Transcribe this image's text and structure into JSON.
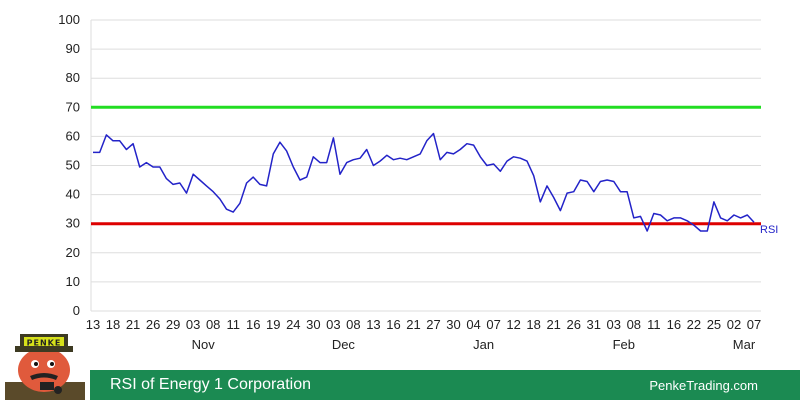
{
  "footer": {
    "title": "RSI of Energy 1 Corporation",
    "site": "PenkeTrading.com"
  },
  "mascot": {
    "hat_text": "PENKE"
  },
  "colors": {
    "rsi_line": "#2323c8",
    "overbought": "#22dd22",
    "oversold": "#dd0000",
    "footer_bg": "#1b8a52",
    "grid": "#dddddd",
    "axis_text": "#222222"
  },
  "chart_data": {
    "type": "line",
    "title": "RSI of Energy 1 Corporation",
    "xlabel": "",
    "ylabel": "",
    "ylim": [
      0,
      100
    ],
    "yticks": [
      0,
      10,
      20,
      30,
      40,
      50,
      60,
      70,
      80,
      90,
      100
    ],
    "grid": true,
    "x_tick_labels": [
      "13",
      "18",
      "21",
      "26",
      "29",
      "03",
      "08",
      "11",
      "16",
      "19",
      "24",
      "30",
      "03",
      "08",
      "13",
      "16",
      "21",
      "27",
      "30",
      "04",
      "07",
      "12",
      "18",
      "21",
      "26",
      "31",
      "03",
      "08",
      "11",
      "16",
      "22",
      "25",
      "02",
      "07"
    ],
    "month_labels": [
      {
        "label": "Nov",
        "after_tick": 5
      },
      {
        "label": "Dec",
        "after_tick": 12
      },
      {
        "label": "Jan",
        "after_tick": 19
      },
      {
        "label": "Feb",
        "after_tick": 26
      },
      {
        "label": "Mar",
        "after_tick": 32
      }
    ],
    "reference_lines": [
      {
        "value": 70,
        "color": "#22dd22"
      },
      {
        "value": 30,
        "color": "#dd0000"
      }
    ],
    "series": [
      {
        "name": "RSI",
        "values": [
          54.5,
          54.5,
          60.5,
          58.5,
          58.5,
          55.5,
          57.5,
          49.5,
          51,
          49.5,
          49.5,
          45.5,
          43.5,
          44,
          40.5,
          47,
          45,
          43,
          41,
          38.5,
          35,
          34,
          37,
          44,
          46,
          43.5,
          43,
          54,
          58,
          55,
          49.5,
          45,
          46,
          53,
          51,
          51,
          59.5,
          47,
          51,
          52,
          52.5,
          55.5,
          50,
          51.5,
          53.5,
          52,
          52.5,
          52,
          53,
          54,
          58.5,
          61,
          52,
          54.5,
          54,
          55.5,
          57.5,
          57,
          53,
          50,
          50.5,
          48,
          51.5,
          53,
          52.5,
          51.5,
          46.5,
          37.5,
          43,
          39,
          34.5,
          40.5,
          41,
          45,
          44.5,
          41,
          44.5,
          45,
          44.5,
          41,
          41,
          32,
          32.5,
          27.5,
          33.5,
          33,
          31,
          32,
          32,
          31,
          29.5,
          27.5,
          27.5,
          37.5,
          32,
          31,
          33,
          32,
          33,
          30.5
        ]
      }
    ]
  }
}
